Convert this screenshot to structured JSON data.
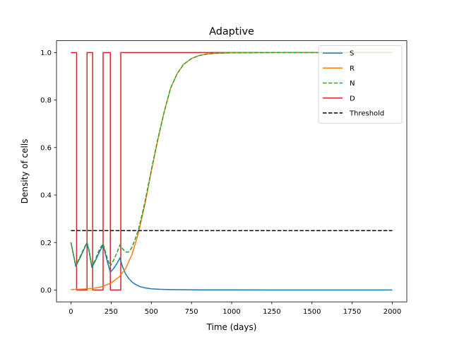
{
  "chart_data": {
    "type": "line",
    "title": "Adaptive",
    "xlabel": "Time (days)",
    "ylabel": "Density of cells",
    "xlim": [
      -90,
      2090
    ],
    "ylim": [
      -0.05,
      1.05
    ],
    "xticks": [
      0,
      250,
      500,
      750,
      1000,
      1250,
      1500,
      1750,
      2000
    ],
    "xtick_labels": [
      "0",
      "250",
      "500",
      "750",
      "1000",
      "1250",
      "1500",
      "1750",
      "2000"
    ],
    "yticks": [
      0.0,
      0.2,
      0.4,
      0.6,
      0.8,
      1.0
    ],
    "ytick_labels": [
      "0.0",
      "0.2",
      "0.4",
      "0.6",
      "0.8",
      "1.0"
    ],
    "grid": false,
    "legend": "upper-right",
    "series": [
      {
        "name": "S",
        "color": "#1f77b4",
        "dash": "solid",
        "x": [
          0,
          15,
          30,
          45,
          60,
          80,
          100,
          115,
          130,
          150,
          170,
          185,
          200,
          215,
          230,
          245,
          265,
          285,
          305,
          320,
          340,
          360,
          380,
          400,
          430,
          460,
          500,
          550,
          600,
          700,
          800,
          1000,
          1250,
          1500,
          1750,
          2000
        ],
        "y": [
          0.2,
          0.15,
          0.1,
          0.12,
          0.14,
          0.17,
          0.2,
          0.155,
          0.095,
          0.12,
          0.15,
          0.17,
          0.19,
          0.15,
          0.11,
          0.075,
          0.09,
          0.11,
          0.135,
          0.1,
          0.068,
          0.048,
          0.034,
          0.024,
          0.014,
          0.009,
          0.005,
          0.003,
          0.002,
          0.001,
          0.0005,
          0.0003,
          0.0002,
          0.0001,
          0.0001,
          0.0001
        ]
      },
      {
        "name": "R",
        "color": "#ff7f0e",
        "dash": "solid",
        "x": [
          0,
          50,
          100,
          150,
          200,
          250,
          300,
          340,
          380,
          420,
          460,
          500,
          540,
          580,
          620,
          660,
          700,
          750,
          800,
          850,
          900,
          1000,
          1250,
          1500,
          1750,
          2000
        ],
        "y": [
          0.002,
          0.003,
          0.005,
          0.008,
          0.015,
          0.03,
          0.055,
          0.09,
          0.15,
          0.24,
          0.36,
          0.5,
          0.63,
          0.75,
          0.85,
          0.91,
          0.95,
          0.975,
          0.988,
          0.994,
          0.997,
          0.999,
          1.0,
          1.0,
          1.0,
          1.0
        ]
      },
      {
        "name": "N",
        "color": "#2ca02c",
        "dash": "dashed",
        "x": [
          0,
          15,
          30,
          45,
          60,
          80,
          100,
          115,
          130,
          150,
          170,
          185,
          200,
          215,
          230,
          245,
          265,
          285,
          305,
          320,
          340,
          360,
          380,
          400,
          420,
          440,
          460,
          500,
          540,
          580,
          620,
          660,
          700,
          750,
          800,
          850,
          900,
          1000,
          1250,
          1500,
          1750,
          2000
        ],
        "y": [
          0.2,
          0.15,
          0.1,
          0.125,
          0.145,
          0.175,
          0.2,
          0.16,
          0.1,
          0.125,
          0.16,
          0.18,
          0.195,
          0.16,
          0.125,
          0.1,
          0.125,
          0.155,
          0.19,
          0.175,
          0.16,
          0.16,
          0.18,
          0.215,
          0.255,
          0.31,
          0.37,
          0.505,
          0.635,
          0.75,
          0.85,
          0.91,
          0.95,
          0.975,
          0.988,
          0.994,
          0.997,
          0.999,
          1.0,
          1.0,
          1.0,
          1.0
        ]
      },
      {
        "name": "D",
        "color": "#d62728",
        "dash": "solid",
        "x": [
          0,
          35,
          35,
          100,
          100,
          135,
          135,
          200,
          200,
          245,
          245,
          310,
          310,
          2000
        ],
        "y": [
          1.0,
          1.0,
          0.0,
          0.0,
          1.0,
          1.0,
          0.0,
          0.0,
          1.0,
          1.0,
          0.0,
          0.0,
          1.0,
          1.0
        ]
      },
      {
        "name": "Threshold",
        "color": "#000000",
        "dash": "dashed",
        "x": [
          0,
          2000
        ],
        "y": [
          0.25,
          0.25
        ]
      }
    ]
  }
}
